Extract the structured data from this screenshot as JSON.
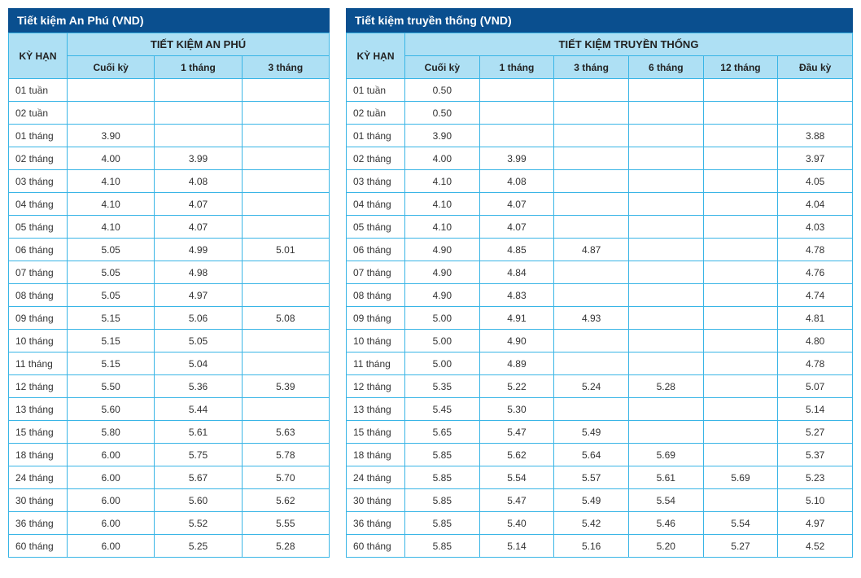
{
  "left": {
    "title": "Tiết kiệm An Phú (VND)",
    "term_header": "KỲ HẠN",
    "group_header": "TIẾT KIỆM AN PHÚ",
    "columns": [
      "Cuối kỳ",
      "1 tháng",
      "3 tháng"
    ],
    "rows": [
      {
        "term": "01 tuần",
        "cells": [
          "",
          "",
          ""
        ]
      },
      {
        "term": "02 tuần",
        "cells": [
          "",
          "",
          ""
        ]
      },
      {
        "term": "01 tháng",
        "cells": [
          "3.90",
          "",
          ""
        ]
      },
      {
        "term": "02 tháng",
        "cells": [
          "4.00",
          "3.99",
          ""
        ]
      },
      {
        "term": "03 tháng",
        "cells": [
          "4.10",
          "4.08",
          ""
        ]
      },
      {
        "term": "04 tháng",
        "cells": [
          "4.10",
          "4.07",
          ""
        ]
      },
      {
        "term": "05 tháng",
        "cells": [
          "4.10",
          "4.07",
          ""
        ]
      },
      {
        "term": "06 tháng",
        "cells": [
          "5.05",
          "4.99",
          "5.01"
        ]
      },
      {
        "term": "07 tháng",
        "cells": [
          "5.05",
          "4.98",
          ""
        ]
      },
      {
        "term": "08 tháng",
        "cells": [
          "5.05",
          "4.97",
          ""
        ]
      },
      {
        "term": "09 tháng",
        "cells": [
          "5.15",
          "5.06",
          "5.08"
        ]
      },
      {
        "term": "10 tháng",
        "cells": [
          "5.15",
          "5.05",
          ""
        ]
      },
      {
        "term": "11 tháng",
        "cells": [
          "5.15",
          "5.04",
          ""
        ]
      },
      {
        "term": "12 tháng",
        "cells": [
          "5.50",
          "5.36",
          "5.39"
        ]
      },
      {
        "term": "13 tháng",
        "cells": [
          "5.60",
          "5.44",
          ""
        ]
      },
      {
        "term": "15 tháng",
        "cells": [
          "5.80",
          "5.61",
          "5.63"
        ]
      },
      {
        "term": "18 tháng",
        "cells": [
          "6.00",
          "5.75",
          "5.78"
        ]
      },
      {
        "term": "24 tháng",
        "cells": [
          "6.00",
          "5.67",
          "5.70"
        ]
      },
      {
        "term": "30 tháng",
        "cells": [
          "6.00",
          "5.60",
          "5.62"
        ]
      },
      {
        "term": "36 tháng",
        "cells": [
          "6.00",
          "5.52",
          "5.55"
        ]
      },
      {
        "term": "60 tháng",
        "cells": [
          "6.00",
          "5.25",
          "5.28"
        ]
      }
    ]
  },
  "right": {
    "title": "Tiết kiệm truyền thống (VND)",
    "term_header": "KỲ HẠN",
    "group_header": "TIẾT KIỆM TRUYỀN THỐNG",
    "columns": [
      "Cuối kỳ",
      "1 tháng",
      "3 tháng",
      "6 tháng",
      "12 tháng",
      "Đầu kỳ"
    ],
    "rows": [
      {
        "term": "01 tuần",
        "cells": [
          "0.50",
          "",
          "",
          "",
          "",
          ""
        ]
      },
      {
        "term": "02 tuần",
        "cells": [
          "0.50",
          "",
          "",
          "",
          "",
          ""
        ]
      },
      {
        "term": "01 tháng",
        "cells": [
          "3.90",
          "",
          "",
          "",
          "",
          "3.88"
        ]
      },
      {
        "term": "02 tháng",
        "cells": [
          "4.00",
          "3.99",
          "",
          "",
          "",
          "3.97"
        ]
      },
      {
        "term": "03 tháng",
        "cells": [
          "4.10",
          "4.08",
          "",
          "",
          "",
          "4.05"
        ]
      },
      {
        "term": "04 tháng",
        "cells": [
          "4.10",
          "4.07",
          "",
          "",
          "",
          "4.04"
        ]
      },
      {
        "term": "05 tháng",
        "cells": [
          "4.10",
          "4.07",
          "",
          "",
          "",
          "4.03"
        ]
      },
      {
        "term": "06 tháng",
        "cells": [
          "4.90",
          "4.85",
          "4.87",
          "",
          "",
          "4.78"
        ]
      },
      {
        "term": "07 tháng",
        "cells": [
          "4.90",
          "4.84",
          "",
          "",
          "",
          "4.76"
        ]
      },
      {
        "term": "08 tháng",
        "cells": [
          "4.90",
          "4.83",
          "",
          "",
          "",
          "4.74"
        ]
      },
      {
        "term": "09 tháng",
        "cells": [
          "5.00",
          "4.91",
          "4.93",
          "",
          "",
          "4.81"
        ]
      },
      {
        "term": "10 tháng",
        "cells": [
          "5.00",
          "4.90",
          "",
          "",
          "",
          "4.80"
        ]
      },
      {
        "term": "11 tháng",
        "cells": [
          "5.00",
          "4.89",
          "",
          "",
          "",
          "4.78"
        ]
      },
      {
        "term": "12 tháng",
        "cells": [
          "5.35",
          "5.22",
          "5.24",
          "5.28",
          "",
          "5.07"
        ]
      },
      {
        "term": "13 tháng",
        "cells": [
          "5.45",
          "5.30",
          "",
          "",
          "",
          "5.14"
        ]
      },
      {
        "term": "15 tháng",
        "cells": [
          "5.65",
          "5.47",
          "5.49",
          "",
          "",
          "5.27"
        ]
      },
      {
        "term": "18 tháng",
        "cells": [
          "5.85",
          "5.62",
          "5.64",
          "5.69",
          "",
          "5.37"
        ]
      },
      {
        "term": "24 tháng",
        "cells": [
          "5.85",
          "5.54",
          "5.57",
          "5.61",
          "5.69",
          "5.23"
        ]
      },
      {
        "term": "30 tháng",
        "cells": [
          "5.85",
          "5.47",
          "5.49",
          "5.54",
          "",
          "5.10"
        ]
      },
      {
        "term": "36 tháng",
        "cells": [
          "5.85",
          "5.40",
          "5.42",
          "5.46",
          "5.54",
          "4.97"
        ]
      },
      {
        "term": "60 tháng",
        "cells": [
          "5.85",
          "5.14",
          "5.16",
          "5.20",
          "5.27",
          "4.52"
        ]
      }
    ]
  },
  "style": {
    "title_bg": "#0a4f8f",
    "title_color": "#ffffff",
    "header_bg": "#aee0f4",
    "border_color": "#39b5e6",
    "body_bg": "#ffffff",
    "font_size_body": 12,
    "font_size_title": 14
  }
}
